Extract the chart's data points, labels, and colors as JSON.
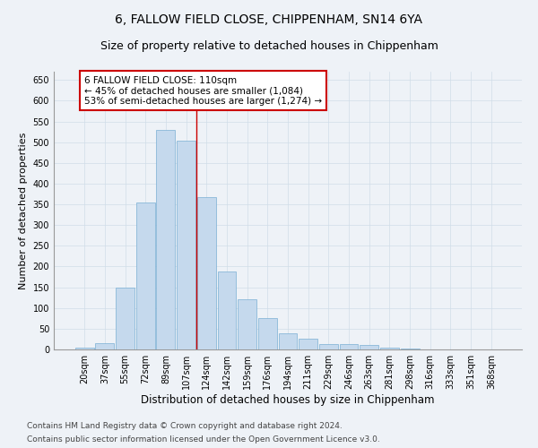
{
  "title": "6, FALLOW FIELD CLOSE, CHIPPENHAM, SN14 6YA",
  "subtitle": "Size of property relative to detached houses in Chippenham",
  "xlabel": "Distribution of detached houses by size in Chippenham",
  "ylabel": "Number of detached properties",
  "categories": [
    "20sqm",
    "37sqm",
    "55sqm",
    "72sqm",
    "89sqm",
    "107sqm",
    "124sqm",
    "142sqm",
    "159sqm",
    "176sqm",
    "194sqm",
    "211sqm",
    "229sqm",
    "246sqm",
    "263sqm",
    "281sqm",
    "298sqm",
    "316sqm",
    "333sqm",
    "351sqm",
    "368sqm"
  ],
  "values": [
    5,
    15,
    150,
    355,
    530,
    503,
    368,
    188,
    122,
    75,
    38,
    27,
    12,
    12,
    10,
    5,
    2,
    0,
    0,
    0,
    0
  ],
  "bar_color": "#c5d9ed",
  "bar_edge_color": "#7aafd4",
  "vline_x": 5.5,
  "vline_color": "#cc0000",
  "annotation_line1": "6 FALLOW FIELD CLOSE: 110sqm",
  "annotation_line2": "← 45% of detached houses are smaller (1,084)",
  "annotation_line3": "53% of semi-detached houses are larger (1,274) →",
  "annotation_box_color": "#ffffff",
  "annotation_box_edge": "#cc0000",
  "ylim": [
    0,
    670
  ],
  "yticks": [
    0,
    50,
    100,
    150,
    200,
    250,
    300,
    350,
    400,
    450,
    500,
    550,
    600,
    650
  ],
  "grid_color": "#d0dde8",
  "background_color": "#eef2f7",
  "footer_line1": "Contains HM Land Registry data © Crown copyright and database right 2024.",
  "footer_line2": "Contains public sector information licensed under the Open Government Licence v3.0.",
  "title_fontsize": 10,
  "subtitle_fontsize": 9,
  "xlabel_fontsize": 8.5,
  "ylabel_fontsize": 8,
  "tick_fontsize": 7,
  "annotation_fontsize": 7.5,
  "footer_fontsize": 6.5
}
